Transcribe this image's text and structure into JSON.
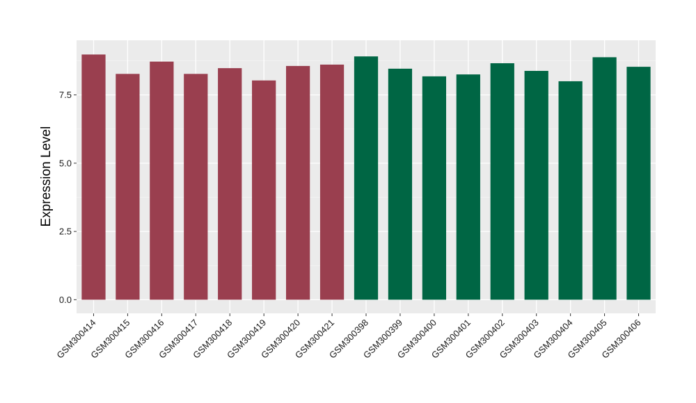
{
  "chart_data": {
    "type": "bar",
    "ylabel": "Expression Level",
    "xlabel": "",
    "title": "",
    "ylim": [
      -0.5,
      9.5
    ],
    "yticks": [
      0.0,
      2.5,
      5.0,
      7.5
    ],
    "ytick_labels": [
      "0.0",
      "2.5",
      "5.0",
      "7.5"
    ],
    "grid": true,
    "legend": "none",
    "panel_background": "#ebebeb",
    "categories": [
      "GSM300414",
      "GSM300415",
      "GSM300416",
      "GSM300417",
      "GSM300418",
      "GSM300419",
      "GSM300420",
      "GSM300421",
      "GSM300398",
      "GSM300399",
      "GSM300400",
      "GSM300401",
      "GSM300402",
      "GSM300403",
      "GSM300404",
      "GSM300405",
      "GSM300406"
    ],
    "values": [
      8.98,
      8.27,
      8.72,
      8.27,
      8.48,
      8.03,
      8.56,
      8.61,
      8.91,
      8.46,
      8.18,
      8.25,
      8.66,
      8.38,
      8.0,
      8.88,
      8.53
    ],
    "group_colors": [
      "#9a3f4f",
      "#9a3f4f",
      "#9a3f4f",
      "#9a3f4f",
      "#9a3f4f",
      "#9a3f4f",
      "#9a3f4f",
      "#9a3f4f",
      "#006644",
      "#006644",
      "#006644",
      "#006644",
      "#006644",
      "#006644",
      "#006644",
      "#006644",
      "#006644"
    ]
  }
}
